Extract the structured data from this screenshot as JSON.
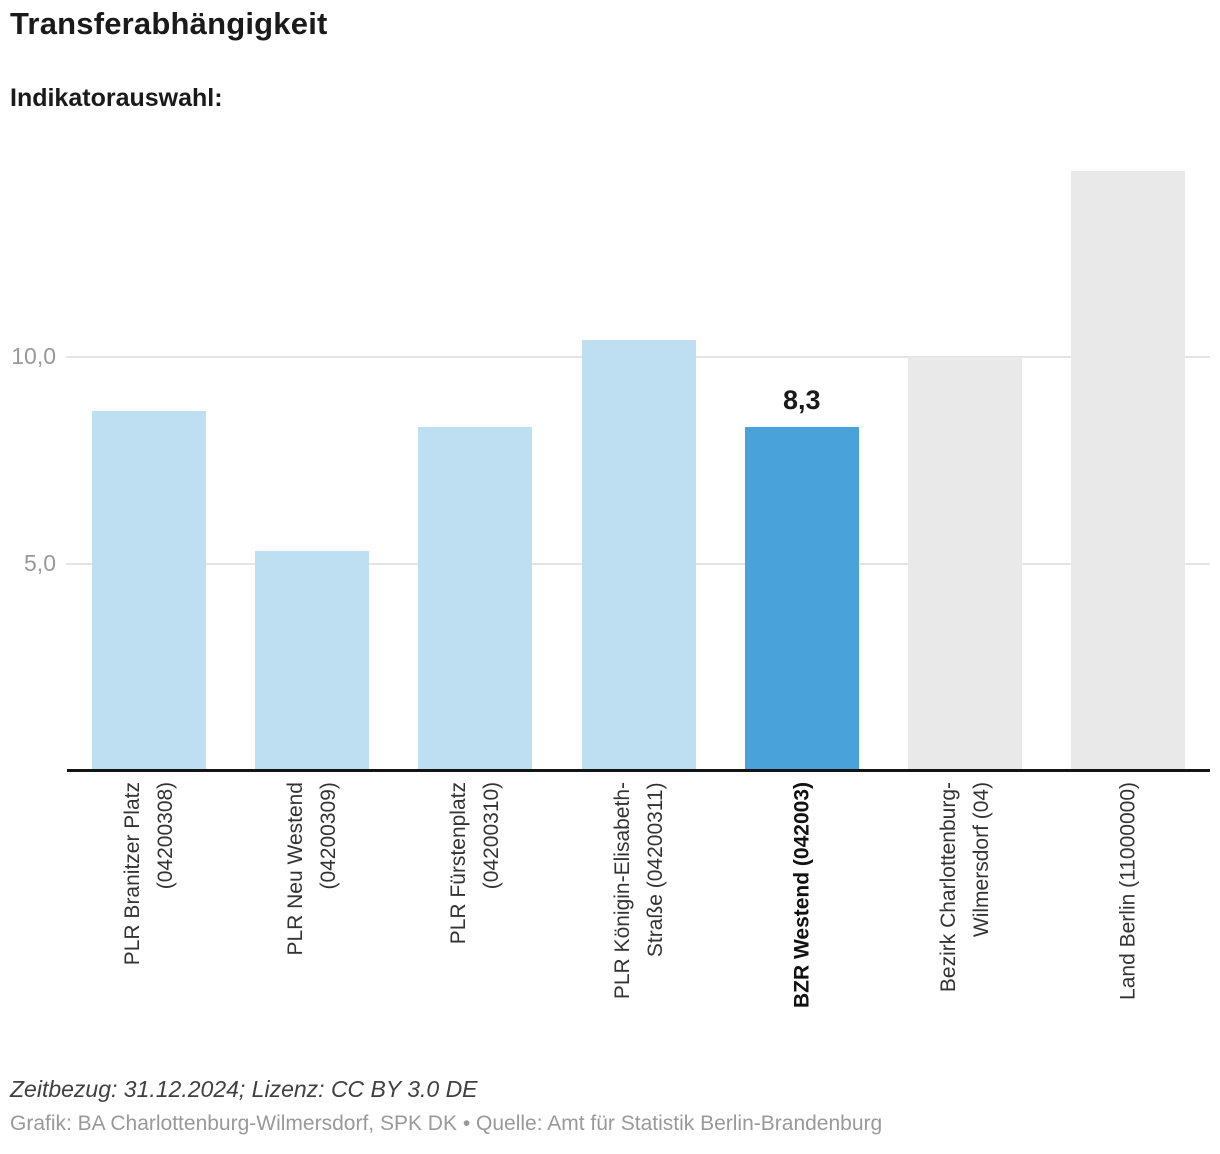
{
  "header": {
    "title": "Transferabhängigkeit",
    "subtitle": "Indikatorauswahl:"
  },
  "colors": {
    "bar_default": "#BEDFF2",
    "bar_selected": "#4AA2DB",
    "bar_reference": "#E9E9E9",
    "grid": "#E4E4E4",
    "axis": "#141414",
    "y_tick_label": "#999999",
    "category_label": "#333333",
    "footer_note": "#404040",
    "footer_source": "#999999"
  },
  "chart_data": {
    "type": "bar",
    "title": "Transferabhängigkeit",
    "categories": [
      "PLR Branitzer Platz (04200308)",
      "PLR Neu Westend (04200309)",
      "PLR Fürstenplatz (04200310)",
      "PLR Königin-Elisabeth-Straße (04200311)",
      "BZR Westend (042003)",
      "Bezirk Charlottenburg-Wilmersdorf (04)",
      "Land Berlin (11000000)"
    ],
    "category_lines": [
      [
        "PLR Branitzer Platz",
        "(04200308)"
      ],
      [
        "PLR Neu Westend",
        "(04200309)"
      ],
      [
        "PLR Fürstenplatz",
        "(04200310)"
      ],
      [
        "PLR Königin-Elisabeth-",
        "Straße (04200311)"
      ],
      [
        "BZR Westend (042003)"
      ],
      [
        "Bezirk Charlottenburg-",
        "Wilmersdorf (04)"
      ],
      [
        "Land Berlin (11000000)"
      ]
    ],
    "values": [
      8.7,
      5.3,
      8.3,
      10.4,
      8.3,
      10.0,
      14.5
    ],
    "bar_styles": [
      "default",
      "default",
      "default",
      "default",
      "selected",
      "reference",
      "reference"
    ],
    "highlight_index": 4,
    "data_label": {
      "index": 4,
      "text": "8,3"
    },
    "y_axis": {
      "ticks": [
        {
          "value": 5,
          "label": "5,0"
        },
        {
          "value": 10,
          "label": "10,0"
        }
      ],
      "min": 0,
      "max": 15.2
    },
    "xlabel": "",
    "ylabel": "",
    "grid": true,
    "legend": "none"
  },
  "footer": {
    "note": "Zeitbezug: 31.12.2024; Lizenz: CC BY 3.0 DE",
    "source": "Grafik: BA Charlottenburg-Wilmersdorf, SPK DK • Quelle: Amt für Statistik Berlin-Brandenburg"
  }
}
